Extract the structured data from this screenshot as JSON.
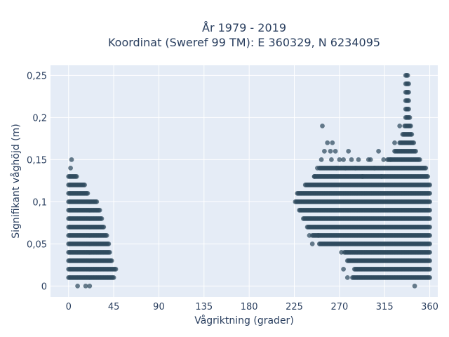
{
  "chart_data": {
    "type": "scatter",
    "title_lines": [
      "År 1979 - 2019",
      "Koordinat (Sweref 99 TM): E 360329, N 6234095"
    ],
    "xlabel": "Vågriktning (grader)",
    "ylabel": "Signifikant våghöjd (m)",
    "xlim": [
      -18,
      368
    ],
    "ylim": [
      -0.013,
      0.262
    ],
    "x_ticks": [
      0,
      45,
      90,
      135,
      180,
      225,
      270,
      315,
      360
    ],
    "x_tick_labels": [
      "0",
      "45",
      "90",
      "135",
      "180",
      "225",
      "270",
      "315",
      "360"
    ],
    "y_ticks": [
      0,
      0.05,
      0.1,
      0.15,
      0.2,
      0.25
    ],
    "y_tick_labels": [
      "0",
      "0,05",
      "0,1",
      "0,15",
      "0,2",
      "0,25"
    ],
    "grid": true,
    "marker_color": "#2f4b5e",
    "y_step": 0.01,
    "bands": [
      {
        "x_from": 0,
        "x_to": 45,
        "step": 1,
        "rows": [
          [
            0.01,
            0,
            45
          ],
          [
            0.02,
            0,
            47
          ],
          [
            0.03,
            0,
            43
          ],
          [
            0.04,
            0,
            41
          ],
          [
            0.05,
            0,
            40
          ],
          [
            0.06,
            0,
            38
          ],
          [
            0.07,
            0,
            35
          ],
          [
            0.08,
            0,
            33
          ],
          [
            0.09,
            0,
            31
          ],
          [
            0.1,
            0,
            28
          ],
          [
            0.11,
            0,
            19
          ],
          [
            0.12,
            0,
            16
          ],
          [
            0.13,
            0,
            8
          ]
        ]
      },
      {
        "x_from": 226,
        "x_to": 360,
        "step": 1,
        "rows": [
          [
            0.01,
            283,
            360
          ],
          [
            0.02,
            285,
            360
          ],
          [
            0.03,
            278,
            360
          ],
          [
            0.04,
            275,
            360
          ],
          [
            0.05,
            250,
            360
          ],
          [
            0.06,
            243,
            360
          ],
          [
            0.07,
            238,
            360
          ],
          [
            0.08,
            234,
            360
          ],
          [
            0.09,
            230,
            360
          ],
          [
            0.1,
            226,
            360
          ],
          [
            0.11,
            228,
            360
          ],
          [
            0.12,
            236,
            360
          ],
          [
            0.13,
            245,
            358
          ],
          [
            0.14,
            250,
            356
          ],
          [
            0.15,
            318,
            350
          ],
          [
            0.16,
            325,
            346
          ],
          [
            0.17,
            330,
            344
          ],
          [
            0.18,
            333,
            342
          ],
          [
            0.19,
            335,
            341
          ],
          [
            0.2,
            336,
            340
          ],
          [
            0.21,
            336,
            339
          ],
          [
            0.22,
            336,
            339
          ],
          [
            0.23,
            336,
            339
          ],
          [
            0.24,
            336,
            339
          ],
          [
            0.25,
            336,
            338
          ]
        ]
      }
    ],
    "points": [
      {
        "x": 3,
        "y": 0.15
      },
      {
        "x": 2,
        "y": 0.14
      },
      {
        "x": 9,
        "y": 0.0
      },
      {
        "x": 17,
        "y": 0.0
      },
      {
        "x": 21,
        "y": 0.0
      },
      {
        "x": 345,
        "y": 0.0
      },
      {
        "x": 274,
        "y": 0.02
      },
      {
        "x": 278,
        "y": 0.01
      },
      {
        "x": 253,
        "y": 0.19
      },
      {
        "x": 258,
        "y": 0.17
      },
      {
        "x": 263,
        "y": 0.17
      },
      {
        "x": 266,
        "y": 0.16
      },
      {
        "x": 255,
        "y": 0.16
      },
      {
        "x": 279,
        "y": 0.16
      },
      {
        "x": 261,
        "y": 0.16
      },
      {
        "x": 282,
        "y": 0.15
      },
      {
        "x": 289,
        "y": 0.15
      },
      {
        "x": 299,
        "y": 0.15
      },
      {
        "x": 301,
        "y": 0.15
      },
      {
        "x": 309,
        "y": 0.16
      },
      {
        "x": 314,
        "y": 0.15
      },
      {
        "x": 330,
        "y": 0.19
      },
      {
        "x": 325,
        "y": 0.17
      },
      {
        "x": 321,
        "y": 0.15
      },
      {
        "x": 243,
        "y": 0.05
      },
      {
        "x": 249,
        "y": 0.06
      },
      {
        "x": 240,
        "y": 0.06
      },
      {
        "x": 272,
        "y": 0.04
      },
      {
        "x": 286,
        "y": 0.14
      },
      {
        "x": 293,
        "y": 0.13
      },
      {
        "x": 305,
        "y": 0.14
      },
      {
        "x": 312,
        "y": 0.13
      },
      {
        "x": 276,
        "y": 0.14
      },
      {
        "x": 267,
        "y": 0.14
      },
      {
        "x": 270,
        "y": 0.15
      },
      {
        "x": 248,
        "y": 0.14
      },
      {
        "x": 245,
        "y": 0.13
      },
      {
        "x": 252,
        "y": 0.15
      },
      {
        "x": 262,
        "y": 0.15
      },
      {
        "x": 274,
        "y": 0.15
      }
    ]
  }
}
